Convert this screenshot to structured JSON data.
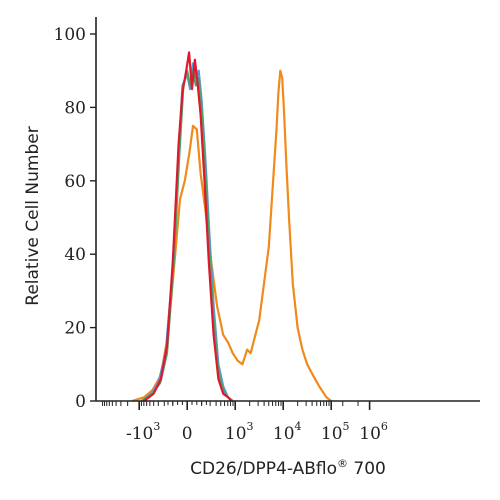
{
  "chart_data": {
    "type": "line",
    "title": "",
    "xlabel": "CD26/DPP4-ABflo",
    "xlabel_mark": "®",
    "xlabel_suffix": " 700",
    "ylabel": "Relative Cell Number",
    "ylim": [
      0,
      100
    ],
    "xscale": "biexponential",
    "xlim_display": [
      -1.9,
      6.1
    ],
    "grid": false,
    "legend": "none",
    "y_ticks": [
      {
        "value": 0,
        "label": "0"
      },
      {
        "value": 20,
        "label": "20"
      },
      {
        "value": 40,
        "label": "40"
      },
      {
        "value": 60,
        "label": "60"
      },
      {
        "value": 80,
        "label": "80"
      },
      {
        "value": 100,
        "label": "100"
      }
    ],
    "x_ticks": [
      {
        "pos": -1,
        "base": "-10",
        "exp": "3"
      },
      {
        "pos": 0,
        "base": "0",
        "exp": ""
      },
      {
        "pos": 1,
        "base": "10",
        "exp": "3"
      },
      {
        "pos": 2,
        "base": "10",
        "exp": "4"
      },
      {
        "pos": 3,
        "base": "10",
        "exp": "5"
      },
      {
        "pos": 3.8,
        "base": "10",
        "exp": "6"
      }
    ],
    "series": [
      {
        "color": "#ef8a1b",
        "x": [
          -1.15,
          -0.9,
          -0.72,
          -0.55,
          -0.4,
          -0.25,
          -0.15,
          -0.05,
          0.05,
          0.12,
          0.2,
          0.28,
          0.38,
          0.5,
          0.62,
          0.75,
          0.85,
          0.95,
          1.05,
          1.15,
          1.25,
          1.32,
          1.4,
          1.5,
          1.6,
          1.7,
          1.75,
          1.8,
          1.86,
          1.9,
          1.94,
          1.98,
          2.02,
          2.06,
          2.12,
          2.2,
          2.3,
          2.4,
          2.5,
          2.62,
          2.75,
          2.9,
          3.0
        ],
        "y": [
          0,
          1,
          3,
          7,
          18,
          40,
          55,
          60,
          68,
          75,
          74,
          62,
          52,
          38,
          26,
          18,
          16,
          13,
          11,
          10,
          14,
          13,
          17,
          22,
          32,
          42,
          52,
          62,
          74,
          84,
          90,
          88,
          78,
          66,
          50,
          32,
          20,
          14,
          10,
          7,
          4,
          1,
          0
        ]
      },
      {
        "color": "#5b9bd5",
        "x": [
          -0.95,
          -0.75,
          -0.6,
          -0.45,
          -0.3,
          -0.18,
          -0.1,
          0.0,
          0.06,
          0.12,
          0.18,
          0.24,
          0.3,
          0.38,
          0.46,
          0.55,
          0.65,
          0.75,
          0.85,
          0.95
        ],
        "y": [
          0,
          2,
          5,
          13,
          36,
          66,
          86,
          89,
          85,
          92,
          88,
          90,
          82,
          66,
          46,
          26,
          10,
          4,
          1,
          0
        ]
      },
      {
        "color": "#4aa36d",
        "x": [
          -0.95,
          -0.72,
          -0.56,
          -0.42,
          -0.28,
          -0.16,
          -0.08,
          0.0,
          0.06,
          0.12,
          0.18,
          0.24,
          0.3,
          0.38,
          0.46,
          0.55,
          0.65,
          0.75,
          0.85,
          0.95
        ],
        "y": [
          0,
          2,
          5,
          13,
          38,
          68,
          86,
          90,
          86,
          90,
          86,
          88,
          80,
          62,
          42,
          22,
          8,
          3,
          1,
          0
        ]
      },
      {
        "color": "#e0182d",
        "x": [
          -0.9,
          -0.7,
          -0.55,
          -0.42,
          -0.3,
          -0.18,
          -0.1,
          -0.02,
          0.04,
          0.1,
          0.16,
          0.22,
          0.28,
          0.36,
          0.45,
          0.55,
          0.65,
          0.75,
          0.85,
          0.92
        ],
        "y": [
          0,
          2,
          6,
          15,
          38,
          70,
          84,
          90,
          95,
          85,
          93,
          86,
          78,
          60,
          38,
          18,
          6,
          2,
          1,
          0
        ]
      }
    ]
  }
}
